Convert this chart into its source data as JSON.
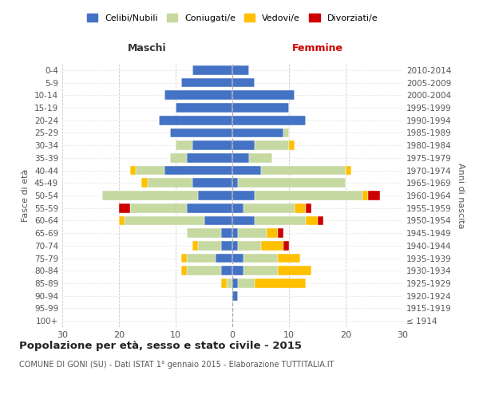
{
  "age_groups": [
    "100+",
    "95-99",
    "90-94",
    "85-89",
    "80-84",
    "75-79",
    "70-74",
    "65-69",
    "60-64",
    "55-59",
    "50-54",
    "45-49",
    "40-44",
    "35-39",
    "30-34",
    "25-29",
    "20-24",
    "15-19",
    "10-14",
    "5-9",
    "0-4"
  ],
  "birth_years": [
    "≤ 1914",
    "1915-1919",
    "1920-1924",
    "1925-1929",
    "1930-1934",
    "1935-1939",
    "1940-1944",
    "1945-1949",
    "1950-1954",
    "1955-1959",
    "1960-1964",
    "1965-1969",
    "1970-1974",
    "1975-1979",
    "1980-1984",
    "1985-1989",
    "1990-1994",
    "1995-1999",
    "2000-2004",
    "2005-2009",
    "2010-2014"
  ],
  "maschi": {
    "celibi": [
      0,
      0,
      0,
      0,
      2,
      3,
      2,
      2,
      5,
      8,
      6,
      7,
      12,
      8,
      7,
      11,
      13,
      10,
      12,
      9,
      7
    ],
    "coniugati": [
      0,
      0,
      0,
      1,
      6,
      5,
      4,
      6,
      14,
      10,
      17,
      8,
      5,
      3,
      3,
      0,
      0,
      0,
      0,
      0,
      0
    ],
    "vedovi": [
      0,
      0,
      0,
      1,
      1,
      1,
      1,
      0,
      1,
      0,
      0,
      1,
      1,
      0,
      0,
      0,
      0,
      0,
      0,
      0,
      0
    ],
    "divorziati": [
      0,
      0,
      0,
      0,
      0,
      0,
      0,
      0,
      0,
      2,
      0,
      0,
      0,
      0,
      0,
      0,
      0,
      0,
      0,
      0,
      0
    ]
  },
  "femmine": {
    "nubili": [
      0,
      0,
      1,
      1,
      2,
      2,
      1,
      1,
      4,
      2,
      4,
      1,
      5,
      3,
      4,
      9,
      13,
      10,
      11,
      4,
      3
    ],
    "coniugate": [
      0,
      0,
      0,
      3,
      6,
      6,
      4,
      5,
      9,
      9,
      19,
      19,
      15,
      4,
      6,
      1,
      0,
      0,
      0,
      0,
      0
    ],
    "vedove": [
      0,
      0,
      0,
      9,
      6,
      4,
      4,
      2,
      2,
      2,
      1,
      0,
      1,
      0,
      1,
      0,
      0,
      0,
      0,
      0,
      0
    ],
    "divorziate": [
      0,
      0,
      0,
      0,
      0,
      0,
      1,
      1,
      1,
      1,
      2,
      0,
      0,
      0,
      0,
      0,
      0,
      0,
      0,
      0,
      0
    ]
  },
  "colors": {
    "celibi_nubili": "#4472c4",
    "coniugati": "#c5d9a0",
    "vedovi": "#ffc000",
    "divorziati": "#cc0000"
  },
  "title": "Popolazione per età, sesso e stato civile - 2015",
  "subtitle": "COMUNE DI GONI (SU) - Dati ISTAT 1° gennaio 2015 - Elaborazione TUTTITALIA.IT",
  "ylabel_left": "Fasce di età",
  "ylabel_right": "Anni di nascita",
  "xlabel_left": "Maschi",
  "xlabel_right": "Femmine",
  "xlim": 30,
  "background_color": "#ffffff",
  "grid_color": "#cccccc"
}
